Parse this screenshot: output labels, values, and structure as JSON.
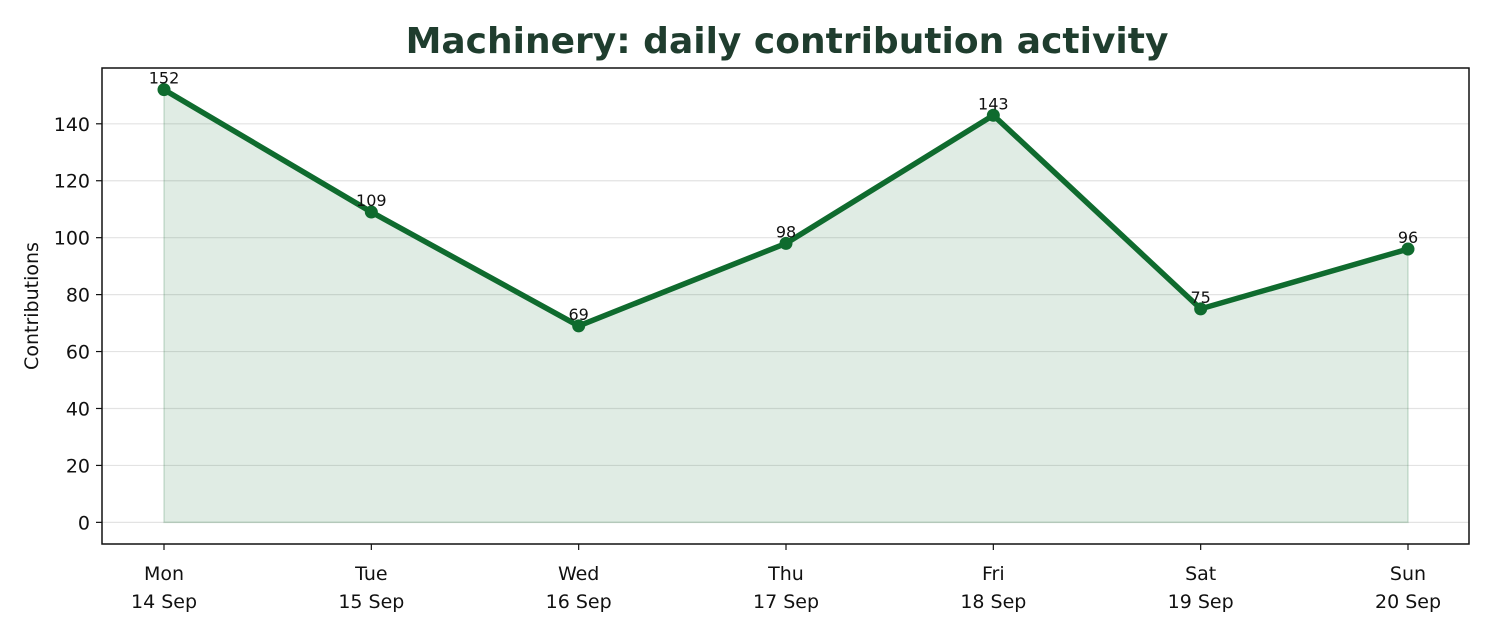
{
  "chart_data": {
    "type": "area",
    "title": "Machinery: daily contribution activity",
    "xlabel": "",
    "ylabel": "Contributions",
    "categories": [
      [
        "Mon",
        "14 Sep"
      ],
      [
        "Tue",
        "15 Sep"
      ],
      [
        "Wed",
        "16 Sep"
      ],
      [
        "Thu",
        "17 Sep"
      ],
      [
        "Fri",
        "18 Sep"
      ],
      [
        "Sat",
        "19 Sep"
      ],
      [
        "Sun",
        "20 Sep"
      ]
    ],
    "values": [
      152,
      109,
      69,
      98,
      143,
      75,
      96
    ],
    "data_labels": [
      "152",
      "109",
      "69",
      "98",
      "143",
      "75",
      "96"
    ],
    "yticks": [
      0,
      20,
      40,
      60,
      80,
      100,
      120,
      140
    ],
    "ylim": [
      -7.6,
      159.6
    ],
    "grid": "horizontal",
    "legend": "none",
    "colors": {
      "line": "#0f6b2e",
      "fill": "#0f6b2e",
      "title": "#1f3d2e",
      "grid": "#e3e3e3",
      "frame": "#111111"
    }
  }
}
